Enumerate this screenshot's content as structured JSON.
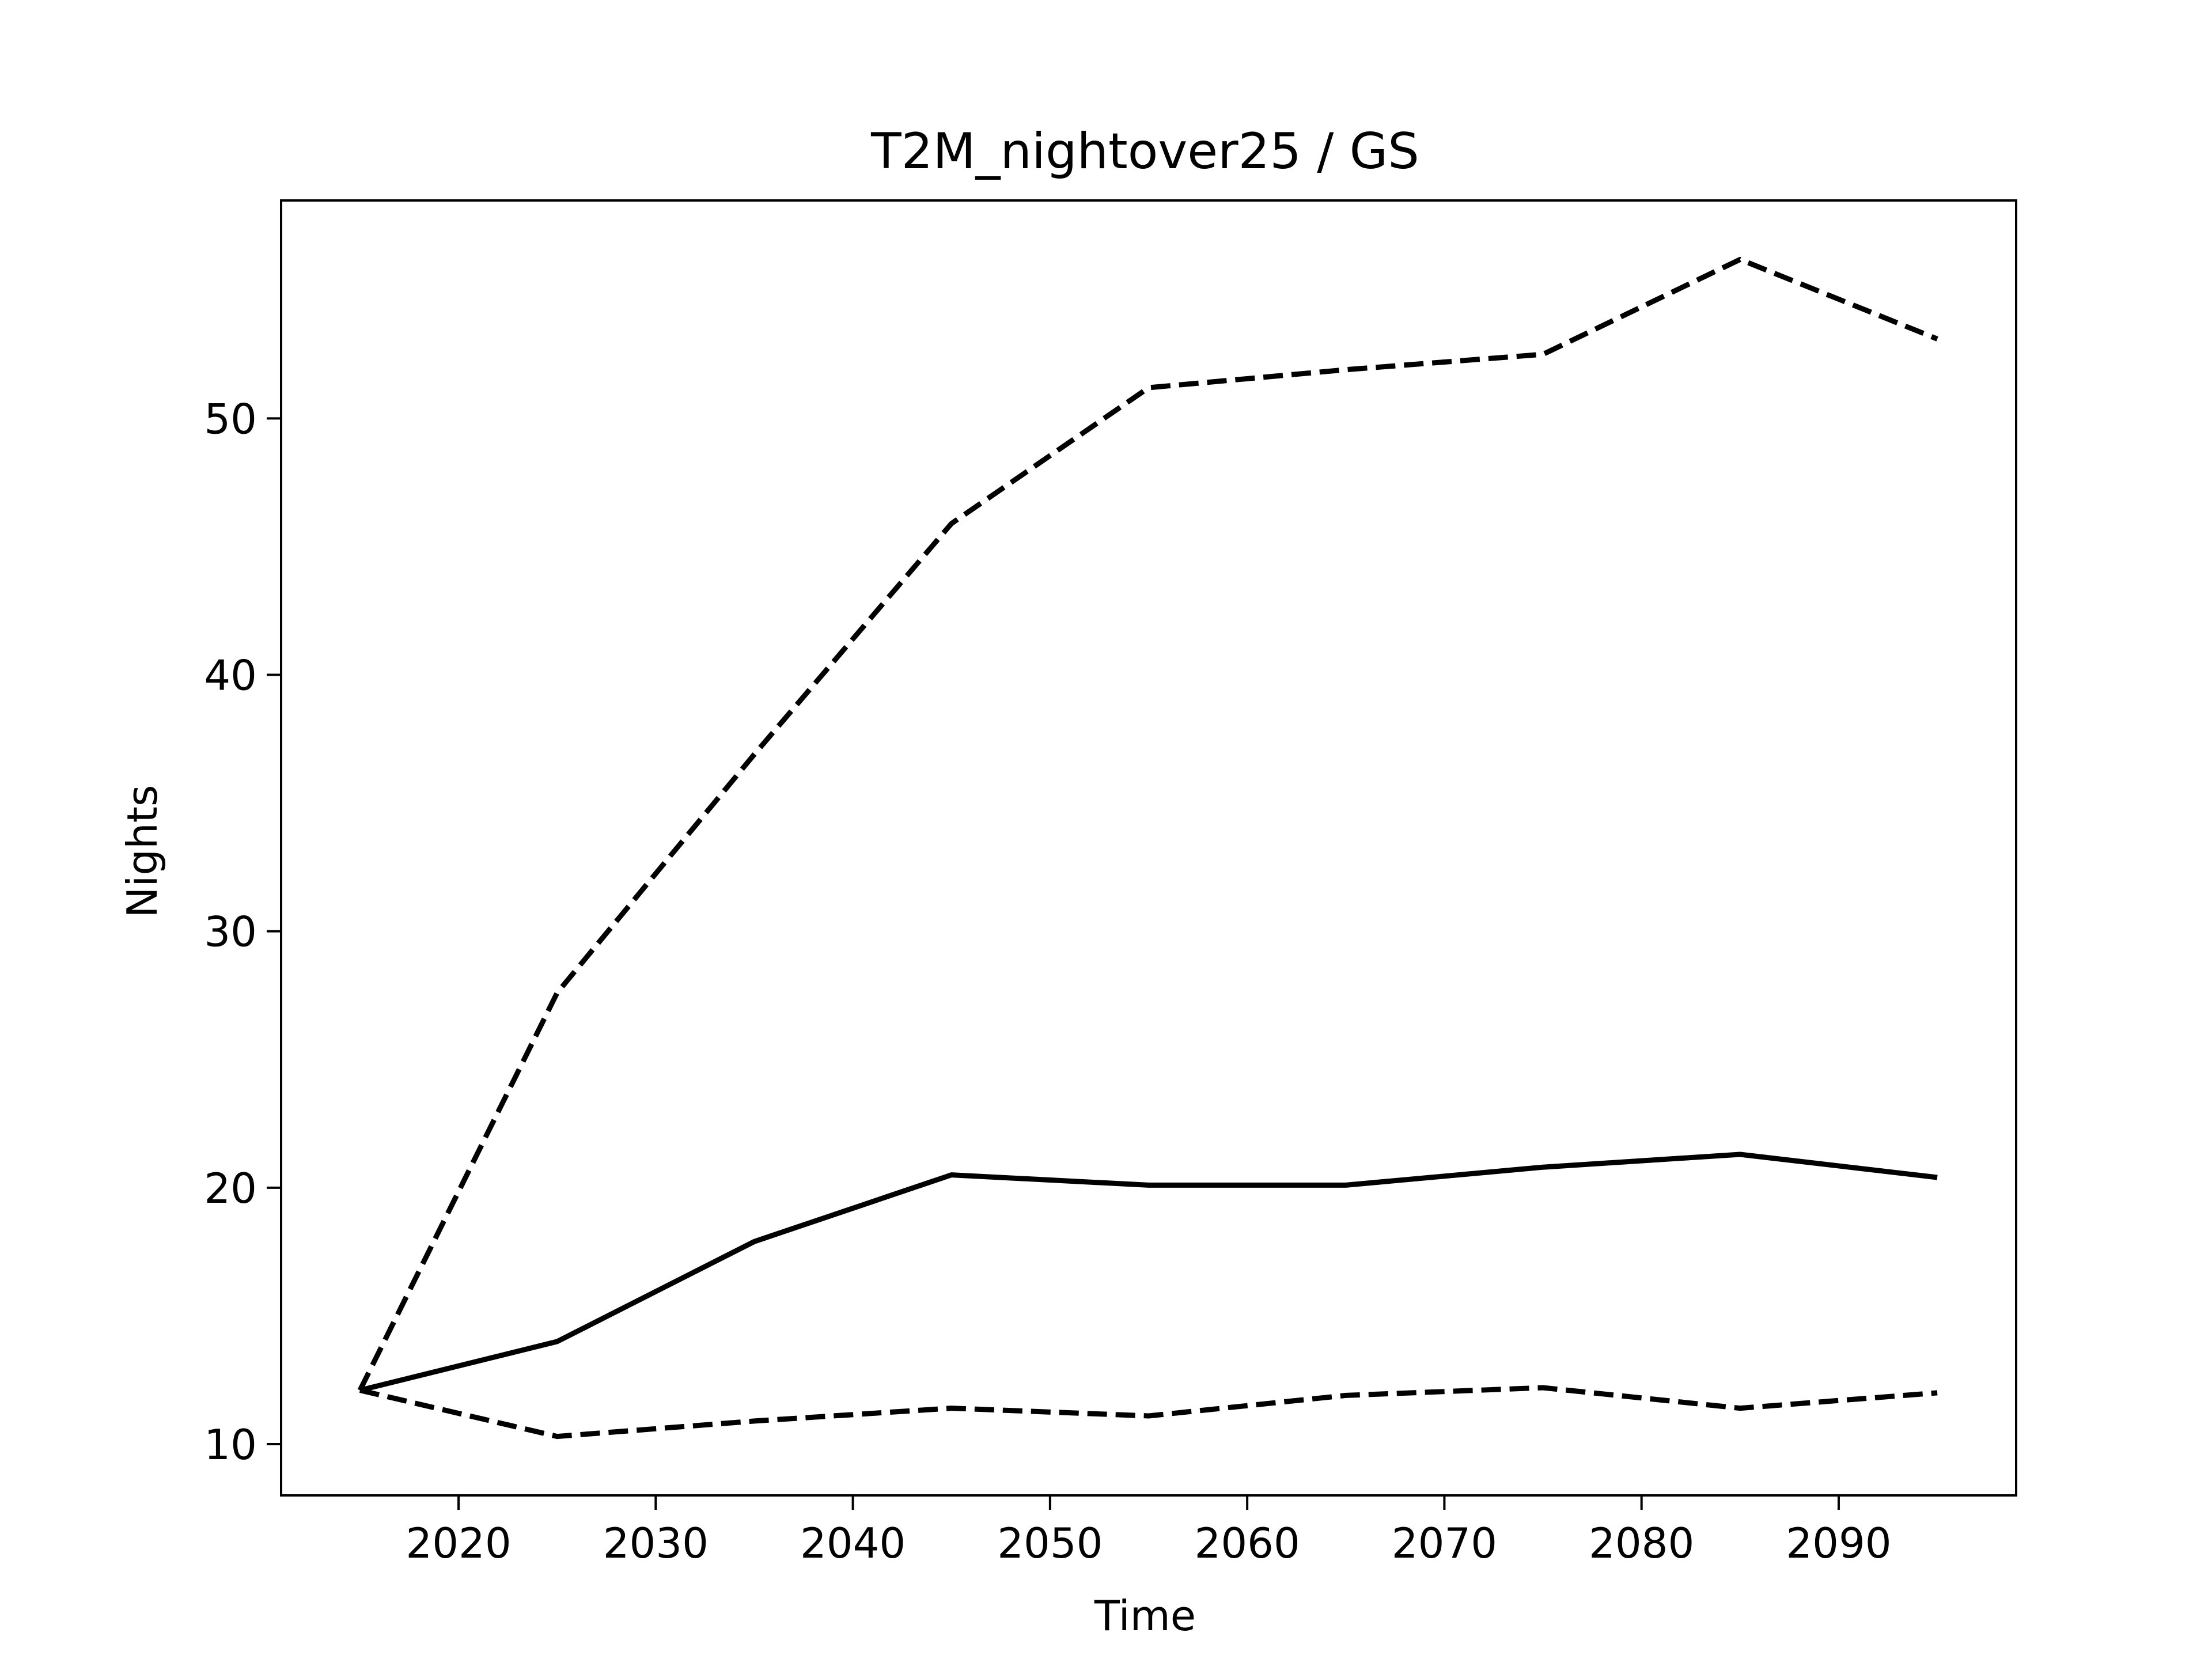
{
  "chart_data": {
    "type": "line",
    "title": "T2M_nightover25 / GS",
    "xlabel": "Time",
    "ylabel": "Nights",
    "xlim": [
      2011,
      2099
    ],
    "ylim": [
      8,
      58.5
    ],
    "xticks": [
      2020,
      2030,
      2040,
      2050,
      2060,
      2070,
      2080,
      2090
    ],
    "yticks": [
      10,
      20,
      30,
      40,
      50
    ],
    "grid": false,
    "legend": "none",
    "x": [
      2015,
      2025,
      2035,
      2045,
      2055,
      2065,
      2075,
      2085,
      2095
    ],
    "series": [
      {
        "values": [
          12.1,
          27.6,
          36.9,
          45.9,
          51.2,
          51.9,
          52.5,
          56.2,
          53.1
        ],
        "style": "dashed",
        "color": "#000000"
      },
      {
        "values": [
          12.1,
          14.0,
          17.9,
          20.5,
          20.1,
          20.1,
          20.8,
          21.3,
          20.4
        ],
        "style": "solid",
        "color": "#000000"
      },
      {
        "values": [
          12.1,
          10.3,
          10.9,
          11.4,
          11.1,
          11.9,
          12.2,
          11.4,
          12.0
        ],
        "style": "dashed",
        "color": "#000000"
      }
    ]
  }
}
